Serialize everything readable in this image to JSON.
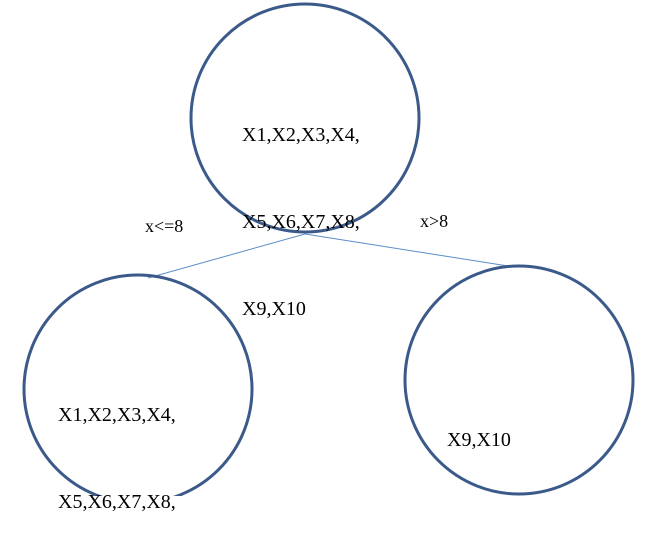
{
  "diagram": {
    "type": "decision-tree",
    "colors": {
      "circle_stroke": "#3b5a8a",
      "edge_stroke": "#5b8fc8",
      "text": "#000000",
      "background": "#ffffff"
    },
    "nodes": {
      "root": {
        "lines": [
          "X1,X2,X3,X4,",
          "X5,X6,X7,X8,",
          "X9,X10"
        ]
      },
      "left": {
        "lines": [
          "X1,X2,X3,X4,",
          "X5,X6,X7,X8,"
        ]
      },
      "right": {
        "lines": [
          "X9,X10"
        ]
      }
    },
    "edges": {
      "left_label": "x<=8",
      "right_label": "x>8"
    }
  }
}
